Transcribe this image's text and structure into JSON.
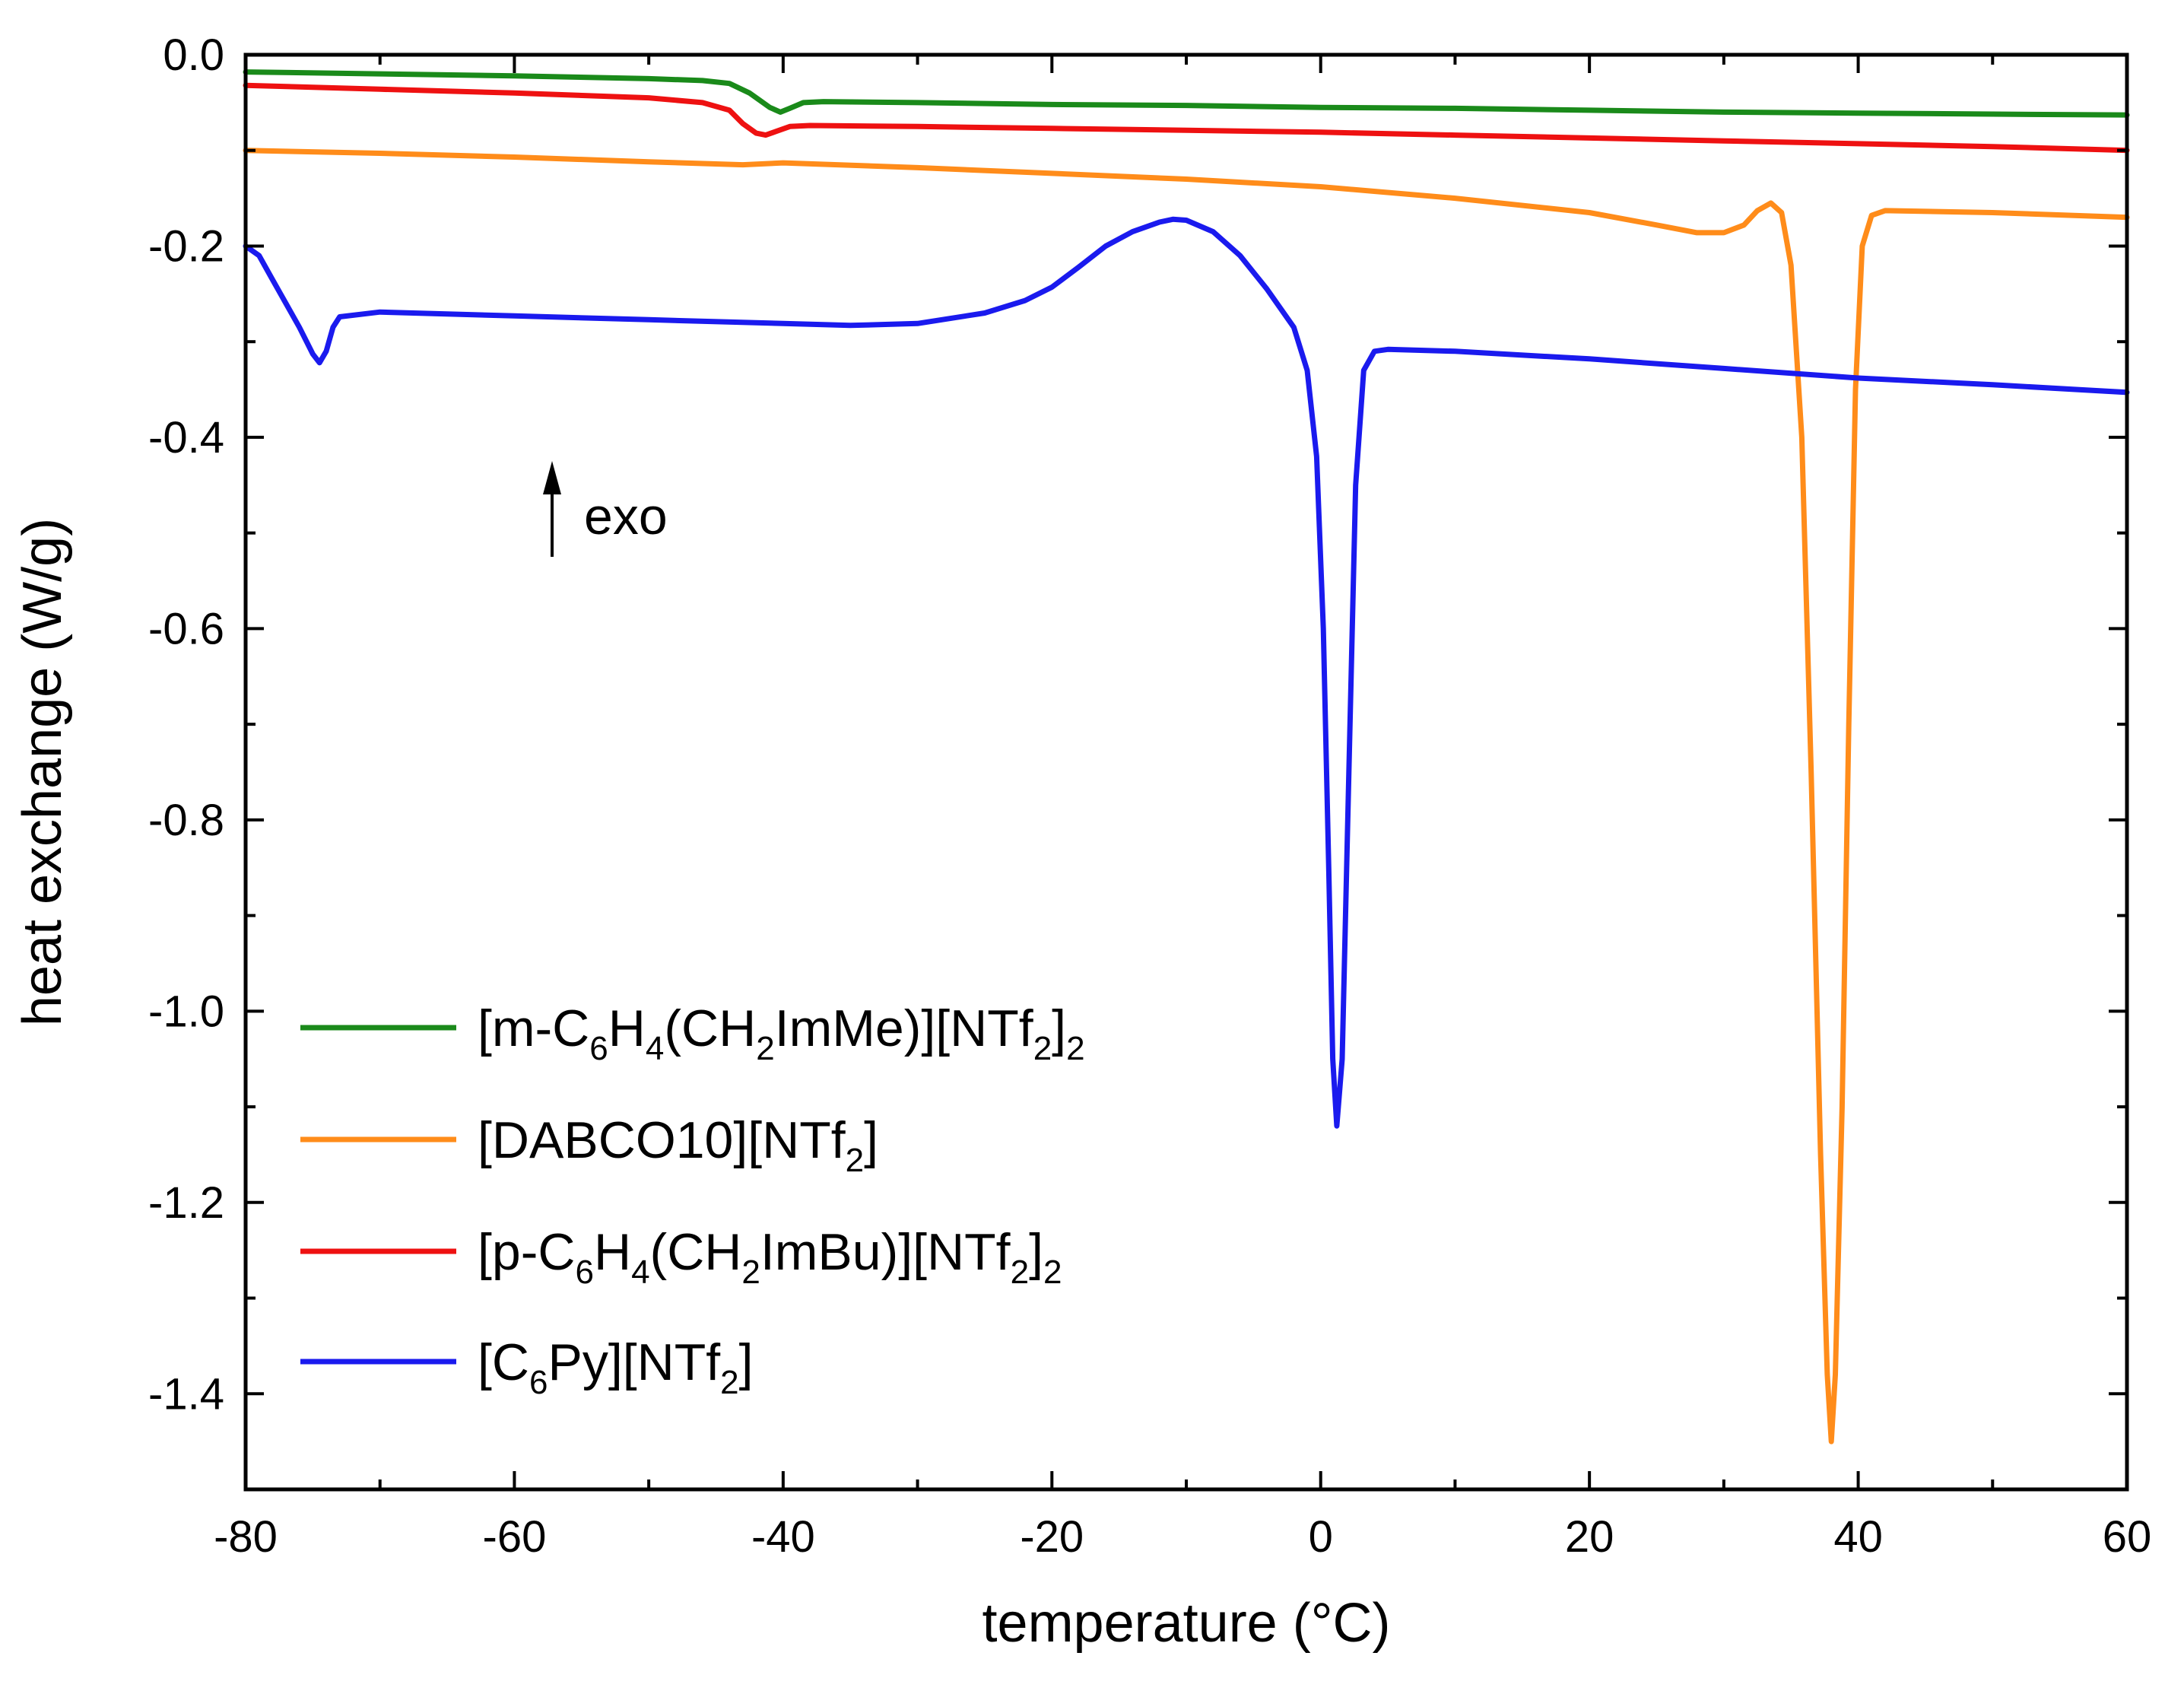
{
  "chart_data": {
    "type": "line",
    "title": "",
    "xlabel": "temperature (°C)",
    "ylabel": "heat exchange (W/g)",
    "xlim": [
      -80,
      60
    ],
    "ylim": [
      -1.5,
      0.0
    ],
    "x_ticks": [
      -80,
      -60,
      -40,
      -20,
      0,
      20,
      40,
      60
    ],
    "x_tick_labels": [
      "-80",
      "-60",
      "-40",
      "-20",
      "0",
      "20",
      "40",
      "60"
    ],
    "y_ticks": [
      0.0,
      -0.2,
      -0.4,
      -0.6,
      -0.8,
      -1.0,
      -1.2,
      -1.4
    ],
    "y_tick_labels": [
      "0.0",
      "-0.2",
      "-0.4",
      "-0.6",
      "-0.8",
      "-1.0",
      "-1.2",
      "-1.4"
    ],
    "grid": false,
    "legend_position": "bottom-left",
    "annotation": {
      "arrow": "up-arrow",
      "text": "exo"
    },
    "series": [
      {
        "name": "green",
        "legend": [
          {
            "t": "[m-C"
          },
          {
            "t": "6",
            "sub": true
          },
          {
            "t": "H"
          },
          {
            "t": "4",
            "sub": true
          },
          {
            "t": "(CH"
          },
          {
            "t": "2",
            "sub": true
          },
          {
            "t": "ImMe)][NTf"
          },
          {
            "t": "2",
            "sub": true
          },
          {
            "t": "]"
          },
          {
            "t": "2",
            "sub": true
          }
        ],
        "color": "#1a8a1a",
        "points": [
          [
            -80,
            -0.018
          ],
          [
            -70,
            -0.02
          ],
          [
            -60,
            -0.022
          ],
          [
            -50,
            -0.025
          ],
          [
            -46,
            -0.027
          ],
          [
            -44,
            -0.03
          ],
          [
            -42.5,
            -0.04
          ],
          [
            -41,
            -0.055
          ],
          [
            -40.2,
            -0.06
          ],
          [
            -39.5,
            -0.056
          ],
          [
            -38.5,
            -0.05
          ],
          [
            -37,
            -0.049
          ],
          [
            -30,
            -0.05
          ],
          [
            -20,
            -0.052
          ],
          [
            -10,
            -0.053
          ],
          [
            0,
            -0.055
          ],
          [
            10,
            -0.056
          ],
          [
            20,
            -0.058
          ],
          [
            30,
            -0.06
          ],
          [
            40,
            -0.061
          ],
          [
            50,
            -0.062
          ],
          [
            60,
            -0.063
          ]
        ]
      },
      {
        "name": "orange",
        "legend": [
          {
            "t": "[DABCO10][NTf"
          },
          {
            "t": "2",
            "sub": true
          },
          {
            "t": "]"
          }
        ],
        "color": "#ff8c1a",
        "points": [
          [
            -80,
            -0.1
          ],
          [
            -70,
            -0.103
          ],
          [
            -60,
            -0.107
          ],
          [
            -50,
            -0.112
          ],
          [
            -43,
            -0.115
          ],
          [
            -40,
            -0.113
          ],
          [
            -30,
            -0.118
          ],
          [
            -20,
            -0.124
          ],
          [
            -10,
            -0.13
          ],
          [
            0,
            -0.138
          ],
          [
            10,
            -0.15
          ],
          [
            20,
            -0.165
          ],
          [
            25,
            -0.178
          ],
          [
            28,
            -0.186
          ],
          [
            30,
            -0.186
          ],
          [
            31.5,
            -0.178
          ],
          [
            32.5,
            -0.163
          ],
          [
            33.5,
            -0.155
          ],
          [
            34.3,
            -0.165
          ],
          [
            35,
            -0.22
          ],
          [
            35.8,
            -0.4
          ],
          [
            36.5,
            -0.75
          ],
          [
            37.2,
            -1.15
          ],
          [
            37.7,
            -1.38
          ],
          [
            38,
            -1.45
          ],
          [
            38.3,
            -1.38
          ],
          [
            38.8,
            -1.1
          ],
          [
            39.3,
            -0.7
          ],
          [
            39.8,
            -0.35
          ],
          [
            40.3,
            -0.2
          ],
          [
            41,
            -0.168
          ],
          [
            42,
            -0.163
          ],
          [
            50,
            -0.165
          ],
          [
            60,
            -0.17
          ]
        ]
      },
      {
        "name": "red",
        "legend": [
          {
            "t": "[p-C"
          },
          {
            "t": "6",
            "sub": true
          },
          {
            "t": "H"
          },
          {
            "t": "4",
            "sub": true
          },
          {
            "t": "(CH"
          },
          {
            "t": "2",
            "sub": true
          },
          {
            "t": "ImBu)][NTf"
          },
          {
            "t": "2",
            "sub": true
          },
          {
            "t": "]"
          },
          {
            "t": "2",
            "sub": true
          }
        ],
        "color": "#ee1111",
        "points": [
          [
            -80,
            -0.032
          ],
          [
            -70,
            -0.036
          ],
          [
            -60,
            -0.04
          ],
          [
            -50,
            -0.045
          ],
          [
            -46,
            -0.05
          ],
          [
            -44,
            -0.058
          ],
          [
            -43,
            -0.072
          ],
          [
            -42,
            -0.082
          ],
          [
            -41.3,
            -0.084
          ],
          [
            -40.5,
            -0.08
          ],
          [
            -39.5,
            -0.075
          ],
          [
            -38,
            -0.074
          ],
          [
            -30,
            -0.075
          ],
          [
            -20,
            -0.077
          ],
          [
            -10,
            -0.079
          ],
          [
            0,
            -0.081
          ],
          [
            10,
            -0.084
          ],
          [
            20,
            -0.087
          ],
          [
            30,
            -0.09
          ],
          [
            40,
            -0.093
          ],
          [
            50,
            -0.096
          ],
          [
            60,
            -0.1
          ]
        ]
      },
      {
        "name": "blue",
        "legend": [
          {
            "t": "[C"
          },
          {
            "t": "6",
            "sub": true
          },
          {
            "t": "Py][NTf"
          },
          {
            "t": "2",
            "sub": true
          },
          {
            "t": "]"
          }
        ],
        "color": "#1a1aee",
        "points": [
          [
            -80,
            -0.2
          ],
          [
            -79,
            -0.21
          ],
          [
            -78,
            -0.235
          ],
          [
            -77,
            -0.26
          ],
          [
            -76,
            -0.285
          ],
          [
            -75,
            -0.313
          ],
          [
            -74.5,
            -0.322
          ],
          [
            -74,
            -0.31
          ],
          [
            -73.5,
            -0.285
          ],
          [
            -73,
            -0.274
          ],
          [
            -70,
            -0.269
          ],
          [
            -60,
            -0.273
          ],
          [
            -50,
            -0.277
          ],
          [
            -40,
            -0.281
          ],
          [
            -35,
            -0.283
          ],
          [
            -30,
            -0.281
          ],
          [
            -25,
            -0.27
          ],
          [
            -22,
            -0.257
          ],
          [
            -20,
            -0.243
          ],
          [
            -18,
            -0.222
          ],
          [
            -16,
            -0.2
          ],
          [
            -14,
            -0.185
          ],
          [
            -12,
            -0.175
          ],
          [
            -11,
            -0.172
          ],
          [
            -10,
            -0.173
          ],
          [
            -8,
            -0.185
          ],
          [
            -6,
            -0.21
          ],
          [
            -4,
            -0.245
          ],
          [
            -2,
            -0.285
          ],
          [
            -1,
            -0.33
          ],
          [
            -0.3,
            -0.42
          ],
          [
            0.2,
            -0.6
          ],
          [
            0.6,
            -0.85
          ],
          [
            0.9,
            -1.05
          ],
          [
            1.2,
            -1.12
          ],
          [
            1.6,
            -1.05
          ],
          [
            2.1,
            -0.75
          ],
          [
            2.6,
            -0.45
          ],
          [
            3.2,
            -0.33
          ],
          [
            4,
            -0.31
          ],
          [
            5,
            -0.308
          ],
          [
            10,
            -0.31
          ],
          [
            20,
            -0.318
          ],
          [
            30,
            -0.328
          ],
          [
            40,
            -0.338
          ],
          [
            50,
            -0.345
          ],
          [
            60,
            -0.353
          ]
        ]
      }
    ]
  }
}
